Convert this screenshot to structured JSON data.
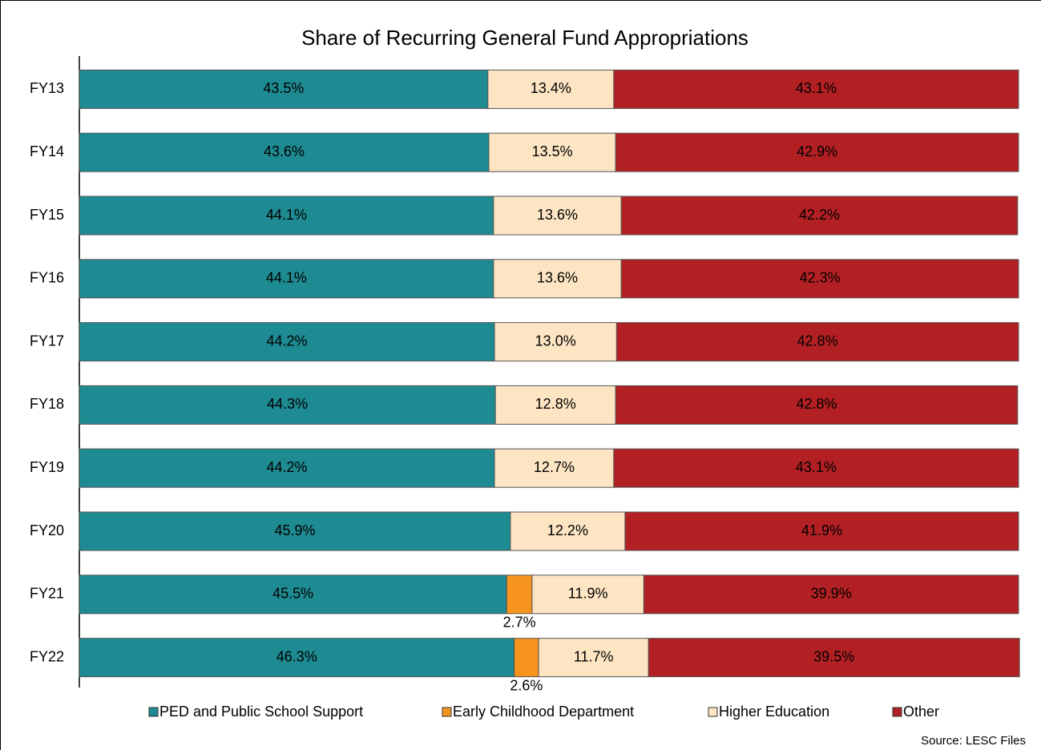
{
  "chart_data": {
    "type": "stacked-barh",
    "title": "Share of Recurring General Fund Appropriations",
    "source": "Source: LESC Files",
    "categories": [
      "FY13",
      "FY14",
      "FY15",
      "FY16",
      "FY17",
      "FY18",
      "FY19",
      "FY20",
      "FY21",
      "FY22"
    ],
    "xlim": [
      0,
      100
    ],
    "legend": "bottom",
    "series": [
      {
        "name": "PED and Public School Support",
        "color": "#1e8a91",
        "values": [
          43.5,
          43.6,
          44.1,
          44.1,
          44.2,
          44.3,
          44.2,
          45.9,
          45.5,
          46.3
        ],
        "value_labels": [
          "43.5%",
          "43.6%",
          "44.1%",
          "44.1%",
          "44.2%",
          "44.3%",
          "44.2%",
          "45.9%",
          "45.5%",
          "46.3%"
        ]
      },
      {
        "name": "Early Childhood Department",
        "color": "#f7941d",
        "values": [
          null,
          null,
          null,
          null,
          null,
          null,
          null,
          null,
          2.7,
          2.6
        ],
        "value_labels": [
          null,
          null,
          null,
          null,
          null,
          null,
          null,
          null,
          "2.7%",
          "2.6%"
        ]
      },
      {
        "name": "Higher Education",
        "color": "#fde4c3",
        "values": [
          13.4,
          13.5,
          13.6,
          13.6,
          13.0,
          12.8,
          12.7,
          12.2,
          11.9,
          11.7
        ],
        "value_labels": [
          "13.4%",
          "13.5%",
          "13.6%",
          "13.6%",
          "13.0%",
          "12.8%",
          "12.7%",
          "12.2%",
          "11.9%",
          "11.7%"
        ]
      },
      {
        "name": "Other",
        "color": "#b22024",
        "values": [
          43.1,
          42.9,
          42.2,
          42.3,
          42.8,
          42.8,
          43.1,
          41.9,
          39.9,
          39.5
        ],
        "value_labels": [
          "43.1%",
          "42.9%",
          "42.2%",
          "42.3%",
          "42.8%",
          "42.8%",
          "43.1%",
          "41.9%",
          "39.9%",
          "39.5%"
        ]
      }
    ]
  }
}
